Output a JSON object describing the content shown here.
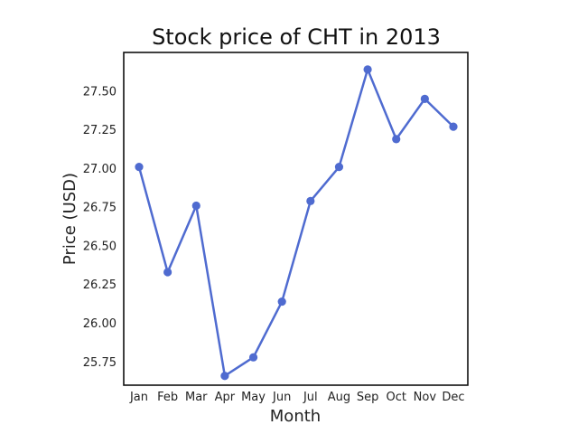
{
  "chart_data": {
    "type": "line",
    "title": "Stock price of CHT in 2013",
    "xlabel": "Month",
    "ylabel": "Price (USD)",
    "categories": [
      "Jan",
      "Feb",
      "Mar",
      "Apr",
      "May",
      "Jun",
      "Jul",
      "Aug",
      "Sep",
      "Oct",
      "Nov",
      "Dec"
    ],
    "series": [
      {
        "values": [
          27.01,
          26.33,
          26.76,
          25.66,
          25.78,
          26.14,
          26.79,
          27.01,
          27.64,
          27.19,
          27.45,
          27.27
        ],
        "color": "#4f6bd0"
      }
    ],
    "ylim": [
      25.6,
      27.75
    ],
    "yticks": [
      25.75,
      26.0,
      26.25,
      26.5,
      26.75,
      27.0,
      27.25,
      27.5
    ],
    "ytick_labels": [
      "25.75",
      "26.00",
      "26.25",
      "26.50",
      "26.75",
      "27.00",
      "27.25",
      "27.50"
    ],
    "grid": false,
    "legend": "none"
  }
}
